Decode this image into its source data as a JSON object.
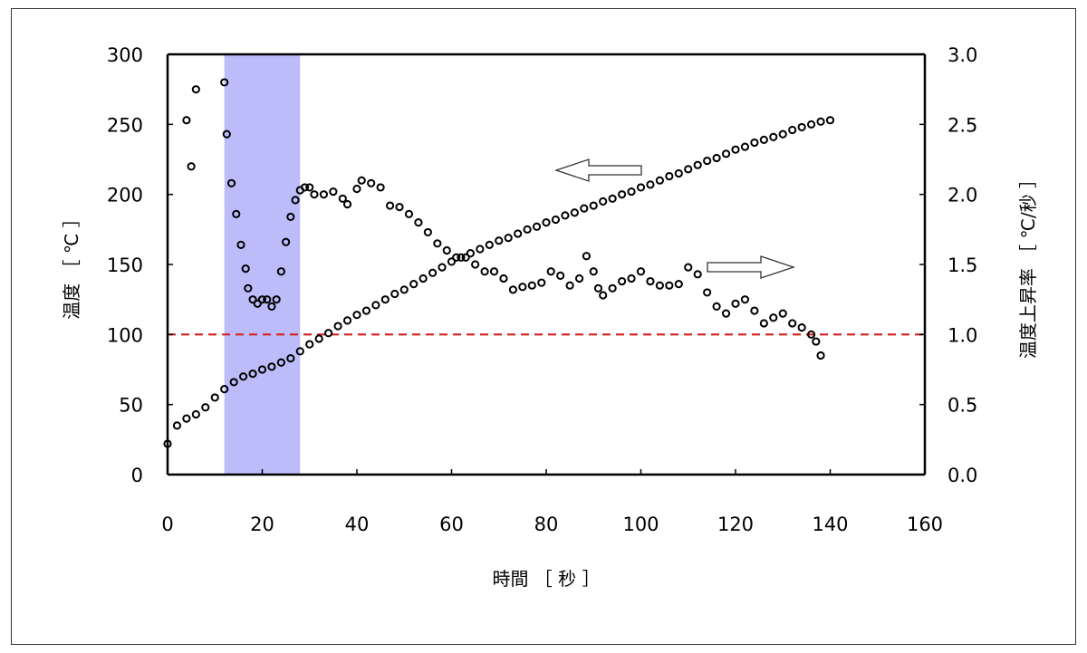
{
  "chart_data": {
    "type": "scatter",
    "xlabel": "時間 ［ 秒 ］",
    "ylabel_left": "温度 ［ ℃ ］",
    "ylabel_right": "温度上昇率 ［ ℃/秒 ］",
    "xlim": [
      0,
      160
    ],
    "ylim_left": [
      0,
      300
    ],
    "ylim_right": [
      0,
      3.0
    ],
    "x_ticks": [
      "0",
      "20",
      "40",
      "60",
      "80",
      "100",
      "120",
      "140",
      "160"
    ],
    "y_left_ticks": [
      "0",
      "50",
      "100",
      "150",
      "200",
      "250",
      "300"
    ],
    "y_right_ticks": [
      "0.0",
      "0.5",
      "1.0",
      "1.5",
      "2.0",
      "2.5",
      "3.0"
    ],
    "grid": false,
    "highlight_band": {
      "x_from": 12,
      "x_to": 28,
      "color": "#bcbcfa"
    },
    "reference_line": {
      "y": 100,
      "axis": "left",
      "color": "#d42020",
      "style": "dashed"
    },
    "annotations": [
      {
        "type": "arrow",
        "direction": "left",
        "meaning": "temperature series uses left axis"
      },
      {
        "type": "arrow",
        "direction": "right",
        "meaning": "rate series uses right axis"
      }
    ],
    "series": [
      {
        "axis": "left",
        "marker": "open-circle",
        "color": "#000000",
        "points": [
          [
            0,
            22
          ],
          [
            2,
            35
          ],
          [
            4,
            40
          ],
          [
            6,
            43
          ],
          [
            8,
            48
          ],
          [
            10,
            55
          ],
          [
            12,
            61
          ],
          [
            14,
            66
          ],
          [
            16,
            70
          ],
          [
            18,
            72
          ],
          [
            20,
            75
          ],
          [
            22,
            77
          ],
          [
            24,
            80
          ],
          [
            26,
            83
          ],
          [
            28,
            88
          ],
          [
            30,
            93
          ],
          [
            32,
            97
          ],
          [
            34,
            101
          ],
          [
            36,
            106
          ],
          [
            38,
            110
          ],
          [
            40,
            114
          ],
          [
            42,
            117
          ],
          [
            44,
            121
          ],
          [
            46,
            125
          ],
          [
            48,
            129
          ],
          [
            50,
            132
          ],
          [
            52,
            136
          ],
          [
            54,
            140
          ],
          [
            56,
            144
          ],
          [
            58,
            148
          ],
          [
            60,
            152
          ],
          [
            62,
            155
          ],
          [
            64,
            158
          ],
          [
            66,
            161
          ],
          [
            68,
            164
          ],
          [
            70,
            167
          ],
          [
            72,
            169
          ],
          [
            74,
            172
          ],
          [
            76,
            175
          ],
          [
            78,
            177
          ],
          [
            80,
            180
          ],
          [
            82,
            182
          ],
          [
            84,
            185
          ],
          [
            86,
            187
          ],
          [
            88,
            190
          ],
          [
            90,
            192
          ],
          [
            92,
            195
          ],
          [
            94,
            197
          ],
          [
            96,
            200
          ],
          [
            98,
            202
          ],
          [
            100,
            205
          ],
          [
            102,
            207
          ],
          [
            104,
            210
          ],
          [
            106,
            213
          ],
          [
            108,
            215
          ],
          [
            110,
            218
          ],
          [
            112,
            221
          ],
          [
            114,
            224
          ],
          [
            116,
            226
          ],
          [
            118,
            229
          ],
          [
            120,
            232
          ],
          [
            122,
            234
          ],
          [
            124,
            237
          ],
          [
            126,
            239
          ],
          [
            128,
            241
          ],
          [
            130,
            243
          ],
          [
            132,
            246
          ],
          [
            134,
            248
          ],
          [
            136,
            250
          ],
          [
            138,
            252
          ],
          [
            140,
            253
          ]
        ]
      },
      {
        "axis": "right",
        "marker": "open-circle",
        "color": "#000000",
        "points": [
          [
            4,
            2.53
          ],
          [
            5,
            2.2
          ],
          [
            6,
            2.75
          ],
          [
            12,
            2.8
          ],
          [
            12.5,
            2.43
          ],
          [
            13.5,
            2.08
          ],
          [
            14.5,
            1.86
          ],
          [
            15.5,
            1.64
          ],
          [
            16.5,
            1.47
          ],
          [
            17,
            1.33
          ],
          [
            18,
            1.25
          ],
          [
            19,
            1.22
          ],
          [
            20,
            1.25
          ],
          [
            21,
            1.25
          ],
          [
            22,
            1.2
          ],
          [
            23,
            1.25
          ],
          [
            24,
            1.45
          ],
          [
            25,
            1.66
          ],
          [
            26,
            1.84
          ],
          [
            27,
            1.96
          ],
          [
            28,
            2.03
          ],
          [
            29,
            2.05
          ],
          [
            30,
            2.05
          ],
          [
            31,
            2.0
          ],
          [
            33,
            2.0
          ],
          [
            35,
            2.02
          ],
          [
            37,
            1.97
          ],
          [
            38,
            1.93
          ],
          [
            40,
            2.04
          ],
          [
            41,
            2.1
          ],
          [
            43,
            2.08
          ],
          [
            45,
            2.05
          ],
          [
            47,
            1.92
          ],
          [
            49,
            1.91
          ],
          [
            51,
            1.86
          ],
          [
            53,
            1.8
          ],
          [
            55,
            1.73
          ],
          [
            57,
            1.65
          ],
          [
            59,
            1.6
          ],
          [
            61,
            1.55
          ],
          [
            63,
            1.55
          ],
          [
            65,
            1.5
          ],
          [
            67,
            1.45
          ],
          [
            69,
            1.45
          ],
          [
            71,
            1.4
          ],
          [
            73,
            1.32
          ],
          [
            75,
            1.34
          ],
          [
            77,
            1.35
          ],
          [
            79,
            1.37
          ],
          [
            81,
            1.45
          ],
          [
            83,
            1.42
          ],
          [
            85,
            1.35
          ],
          [
            87,
            1.4
          ],
          [
            88.5,
            1.56
          ],
          [
            90,
            1.45
          ],
          [
            91,
            1.33
          ],
          [
            92,
            1.28
          ],
          [
            94,
            1.33
          ],
          [
            96,
            1.38
          ],
          [
            98,
            1.4
          ],
          [
            100,
            1.45
          ],
          [
            102,
            1.38
          ],
          [
            104,
            1.35
          ],
          [
            106,
            1.35
          ],
          [
            108,
            1.36
          ],
          [
            110,
            1.48
          ],
          [
            112,
            1.43
          ],
          [
            114,
            1.3
          ],
          [
            116,
            1.2
          ],
          [
            118,
            1.15
          ],
          [
            120,
            1.22
          ],
          [
            122,
            1.25
          ],
          [
            124,
            1.17
          ],
          [
            126,
            1.08
          ],
          [
            128,
            1.12
          ],
          [
            130,
            1.15
          ],
          [
            132,
            1.08
          ],
          [
            134,
            1.05
          ],
          [
            136,
            1.0
          ],
          [
            137,
            0.95
          ],
          [
            138,
            0.85
          ]
        ]
      }
    ]
  }
}
